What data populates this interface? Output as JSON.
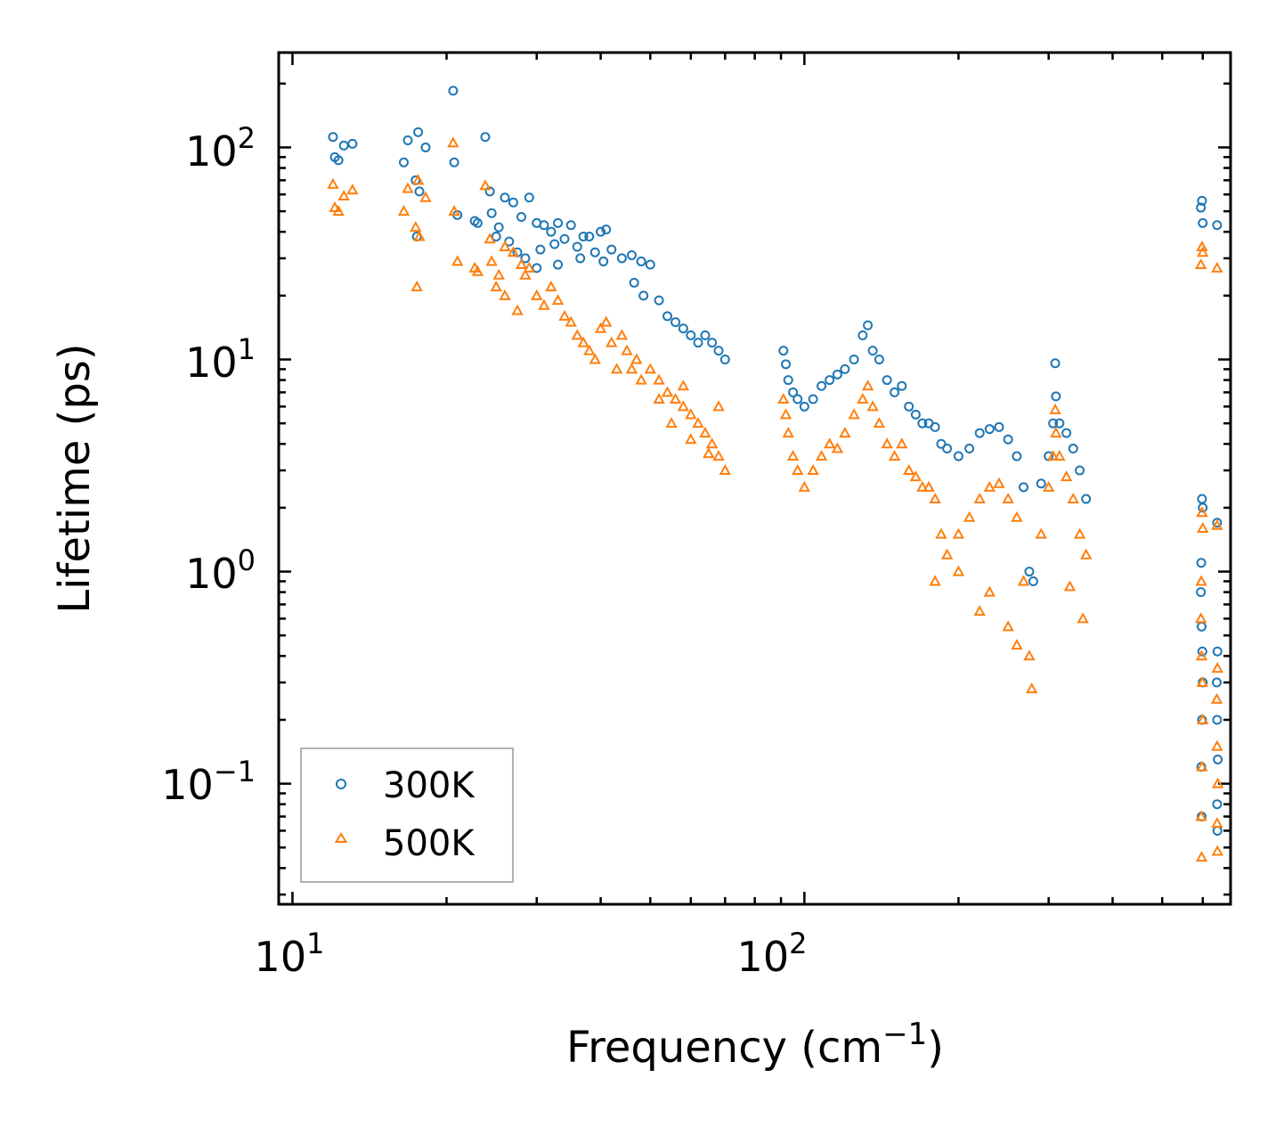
{
  "chart_data": {
    "type": "scatter",
    "title": "",
    "xlabel": "Frequency (cm",
    "xlabel_sup": "−1",
    "xlabel_suffix": ")",
    "ylabel": "Lifetime (ps)",
    "xscale": "log",
    "yscale": "log",
    "xlim": [
      9.4,
      680
    ],
    "ylim": [
      0.027,
      280
    ],
    "x_ticks": [
      {
        "value": 10,
        "base": "10",
        "exp": "1"
      },
      {
        "value": 100,
        "base": "10",
        "exp": "2"
      }
    ],
    "y_ticks": [
      {
        "value": 0.1,
        "base": "10",
        "exp": "−1"
      },
      {
        "value": 1,
        "base": "10",
        "exp": "0"
      },
      {
        "value": 10,
        "base": "10",
        "exp": "1"
      },
      {
        "value": 100,
        "base": "10",
        "exp": "2"
      }
    ],
    "legend_position": "bottom-left",
    "series": [
      {
        "name": "300K",
        "marker": "circle",
        "color": "#1f77b4",
        "points": [
          [
            12.0,
            112
          ],
          [
            12.1,
            90
          ],
          [
            12.3,
            87
          ],
          [
            12.6,
            102
          ],
          [
            13.1,
            104
          ],
          [
            16.5,
            85
          ],
          [
            16.8,
            108
          ],
          [
            17.4,
            70
          ],
          [
            17.5,
            38
          ],
          [
            17.6,
            118
          ],
          [
            17.7,
            62
          ],
          [
            18.2,
            100
          ],
          [
            20.6,
            185
          ],
          [
            20.7,
            85
          ],
          [
            21.0,
            48
          ],
          [
            22.7,
            45
          ],
          [
            23.0,
            44
          ],
          [
            23.8,
            112
          ],
          [
            24.3,
            62
          ],
          [
            24.5,
            49
          ],
          [
            25.3,
            42
          ],
          [
            26.0,
            58
          ],
          [
            27.0,
            55
          ],
          [
            28.0,
            47
          ],
          [
            29.0,
            58
          ],
          [
            30.0,
            44
          ],
          [
            31.0,
            43
          ],
          [
            32.0,
            40
          ],
          [
            33.0,
            44
          ],
          [
            35.0,
            43
          ],
          [
            37.0,
            38
          ],
          [
            38.0,
            38
          ],
          [
            40.0,
            40
          ],
          [
            41.0,
            41
          ],
          [
            25.0,
            38
          ],
          [
            26.5,
            36
          ],
          [
            27.5,
            32
          ],
          [
            28.5,
            30
          ],
          [
            30.5,
            33
          ],
          [
            32.5,
            35
          ],
          [
            34.0,
            37
          ],
          [
            36.0,
            34
          ],
          [
            39.0,
            32
          ],
          [
            42.0,
            33
          ],
          [
            30.0,
            27
          ],
          [
            33.0,
            28
          ],
          [
            36.5,
            30
          ],
          [
            40.5,
            29
          ],
          [
            44.0,
            30
          ],
          [
            46.0,
            31
          ],
          [
            48.0,
            29
          ],
          [
            50.0,
            28
          ],
          [
            46.5,
            23
          ],
          [
            48.5,
            20
          ],
          [
            52.0,
            19
          ],
          [
            54.0,
            16
          ],
          [
            56.0,
            15
          ],
          [
            58.0,
            14
          ],
          [
            60.0,
            13
          ],
          [
            62.0,
            12
          ],
          [
            64.0,
            13
          ],
          [
            66.0,
            12
          ],
          [
            68.0,
            11
          ],
          [
            70.0,
            10
          ],
          [
            91.0,
            11
          ],
          [
            92.0,
            9.5
          ],
          [
            93.0,
            8
          ],
          [
            95.0,
            7
          ],
          [
            97.0,
            6.5
          ],
          [
            100.0,
            6
          ],
          [
            104.0,
            6.5
          ],
          [
            108.0,
            7.5
          ],
          [
            112.0,
            8
          ],
          [
            116.0,
            8.5
          ],
          [
            120.0,
            9
          ],
          [
            125.0,
            10
          ],
          [
            130.0,
            13
          ],
          [
            133.0,
            14.5
          ],
          [
            136.0,
            11
          ],
          [
            140.0,
            10
          ],
          [
            145.0,
            8
          ],
          [
            150.0,
            7
          ],
          [
            155.0,
            7.5
          ],
          [
            160.0,
            6
          ],
          [
            165.0,
            5.5
          ],
          [
            170.0,
            5
          ],
          [
            175.0,
            5
          ],
          [
            180.0,
            4.8
          ],
          [
            185.0,
            4
          ],
          [
            190.0,
            3.8
          ],
          [
            200.0,
            3.5
          ],
          [
            210.0,
            3.8
          ],
          [
            220.0,
            4.5
          ],
          [
            230.0,
            4.7
          ],
          [
            240.0,
            4.8
          ],
          [
            250.0,
            4.2
          ],
          [
            260.0,
            3.5
          ],
          [
            268.0,
            2.5
          ],
          [
            275.0,
            1.0
          ],
          [
            280.0,
            0.9
          ],
          [
            290.0,
            2.6
          ],
          [
            300.0,
            3.5
          ],
          [
            306.0,
            5
          ],
          [
            309.0,
            9.6
          ],
          [
            310.0,
            6.7
          ],
          [
            315.0,
            5
          ],
          [
            325.0,
            4.5
          ],
          [
            335.0,
            3.8
          ],
          [
            345.0,
            3
          ],
          [
            355.0,
            2.2
          ],
          [
            595.0,
            52
          ],
          [
            598.0,
            56
          ],
          [
            600.0,
            44
          ],
          [
            640.0,
            43
          ],
          [
            598.0,
            2.2
          ],
          [
            600.0,
            2.0
          ],
          [
            596.0,
            1.1
          ],
          [
            595.0,
            0.8
          ],
          [
            597.0,
            0.55
          ],
          [
            599.0,
            0.42
          ],
          [
            600.0,
            0.3
          ],
          [
            598.0,
            0.2
          ],
          [
            596.0,
            0.12
          ],
          [
            597.0,
            0.07
          ],
          [
            640.0,
            1.7
          ],
          [
            641.0,
            0.42
          ],
          [
            639.0,
            0.3
          ],
          [
            640.0,
            0.2
          ],
          [
            642.0,
            0.13
          ],
          [
            640.0,
            0.08
          ],
          [
            641.0,
            0.06
          ]
        ]
      },
      {
        "name": "500K",
        "marker": "triangle",
        "color": "#ff7f0e",
        "points": [
          [
            12.0,
            67
          ],
          [
            12.1,
            52
          ],
          [
            12.3,
            50
          ],
          [
            12.6,
            59
          ],
          [
            13.1,
            63
          ],
          [
            16.5,
            50
          ],
          [
            16.8,
            64
          ],
          [
            17.4,
            42
          ],
          [
            17.5,
            22
          ],
          [
            17.6,
            70
          ],
          [
            17.7,
            38
          ],
          [
            18.2,
            58
          ],
          [
            20.6,
            105
          ],
          [
            20.7,
            50
          ],
          [
            21.0,
            29
          ],
          [
            22.7,
            27
          ],
          [
            23.0,
            26
          ],
          [
            23.8,
            66
          ],
          [
            24.3,
            37
          ],
          [
            24.5,
            29
          ],
          [
            25.3,
            25
          ],
          [
            26.0,
            34
          ],
          [
            27.0,
            32
          ],
          [
            28.0,
            28
          ],
          [
            29.0,
            27
          ],
          [
            25.0,
            22
          ],
          [
            26.0,
            20
          ],
          [
            27.5,
            17
          ],
          [
            28.5,
            25
          ],
          [
            30.0,
            20
          ],
          [
            31.0,
            18
          ],
          [
            32.0,
            22
          ],
          [
            33.0,
            19
          ],
          [
            34.0,
            16
          ],
          [
            35.0,
            15
          ],
          [
            36.0,
            13
          ],
          [
            37.0,
            12
          ],
          [
            38.0,
            11
          ],
          [
            39.0,
            10
          ],
          [
            40.0,
            14
          ],
          [
            41.0,
            15
          ],
          [
            42.0,
            12
          ],
          [
            43.0,
            9
          ],
          [
            44.0,
            13
          ],
          [
            45.0,
            11
          ],
          [
            46.0,
            9
          ],
          [
            47.0,
            10
          ],
          [
            48.0,
            8
          ],
          [
            50.0,
            9
          ],
          [
            52.0,
            8
          ],
          [
            54.0,
            7
          ],
          [
            56.0,
            6.5
          ],
          [
            58.0,
            6
          ],
          [
            60.0,
            5.5
          ],
          [
            62.0,
            5
          ],
          [
            64.0,
            4.5
          ],
          [
            66.0,
            4
          ],
          [
            68.0,
            3.5
          ],
          [
            70.0,
            3
          ],
          [
            55.0,
            5
          ],
          [
            60.0,
            4.2
          ],
          [
            65.0,
            3.6
          ],
          [
            52.0,
            6.5
          ],
          [
            58.0,
            7.5
          ],
          [
            68.0,
            6
          ],
          [
            91.0,
            6.5
          ],
          [
            92.0,
            5.5
          ],
          [
            93.0,
            4.5
          ],
          [
            95.0,
            3.5
          ],
          [
            97.0,
            3
          ],
          [
            100.0,
            2.5
          ],
          [
            104.0,
            3
          ],
          [
            108.0,
            3.5
          ],
          [
            112.0,
            4
          ],
          [
            116.0,
            3.8
          ],
          [
            120.0,
            4.5
          ],
          [
            125.0,
            5.5
          ],
          [
            130.0,
            6.5
          ],
          [
            133.0,
            7.5
          ],
          [
            136.0,
            6
          ],
          [
            140.0,
            5
          ],
          [
            145.0,
            4
          ],
          [
            150.0,
            3.5
          ],
          [
            155.0,
            4
          ],
          [
            160.0,
            3
          ],
          [
            165.0,
            2.8
          ],
          [
            170.0,
            2.5
          ],
          [
            175.0,
            2.5
          ],
          [
            180.0,
            2.2
          ],
          [
            185.0,
            1.5
          ],
          [
            190.0,
            1.2
          ],
          [
            200.0,
            1.5
          ],
          [
            210.0,
            1.8
          ],
          [
            220.0,
            2.2
          ],
          [
            230.0,
            2.5
          ],
          [
            240.0,
            2.6
          ],
          [
            250.0,
            2.2
          ],
          [
            260.0,
            1.8
          ],
          [
            268.0,
            0.9
          ],
          [
            275.0,
            0.4
          ],
          [
            278.0,
            0.28
          ],
          [
            290.0,
            1.5
          ],
          [
            300.0,
            2.5
          ],
          [
            306.0,
            3.5
          ],
          [
            309.0,
            5.8
          ],
          [
            310.0,
            4.5
          ],
          [
            315.0,
            3.5
          ],
          [
            325.0,
            2.8
          ],
          [
            335.0,
            2.2
          ],
          [
            345.0,
            1.5
          ],
          [
            355.0,
            1.2
          ],
          [
            220.0,
            0.65
          ],
          [
            230.0,
            0.8
          ],
          [
            250.0,
            0.55
          ],
          [
            260.0,
            0.45
          ],
          [
            180.0,
            0.9
          ],
          [
            200.0,
            1.0
          ],
          [
            330.0,
            0.85
          ],
          [
            350.0,
            0.6
          ],
          [
            595.0,
            28
          ],
          [
            598.0,
            34
          ],
          [
            600.0,
            32
          ],
          [
            640.0,
            27
          ],
          [
            598.0,
            1.9
          ],
          [
            600.0,
            1.6
          ],
          [
            596.0,
            0.9
          ],
          [
            595.0,
            0.6
          ],
          [
            597.0,
            0.4
          ],
          [
            599.0,
            0.3
          ],
          [
            600.0,
            0.2
          ],
          [
            598.0,
            0.12
          ],
          [
            596.0,
            0.07
          ],
          [
            597.0,
            0.045
          ],
          [
            640.0,
            1.65
          ],
          [
            641.0,
            0.35
          ],
          [
            639.0,
            0.25
          ],
          [
            640.0,
            0.15
          ],
          [
            642.0,
            0.1
          ],
          [
            640.0,
            0.065
          ],
          [
            641.0,
            0.048
          ]
        ]
      }
    ]
  }
}
